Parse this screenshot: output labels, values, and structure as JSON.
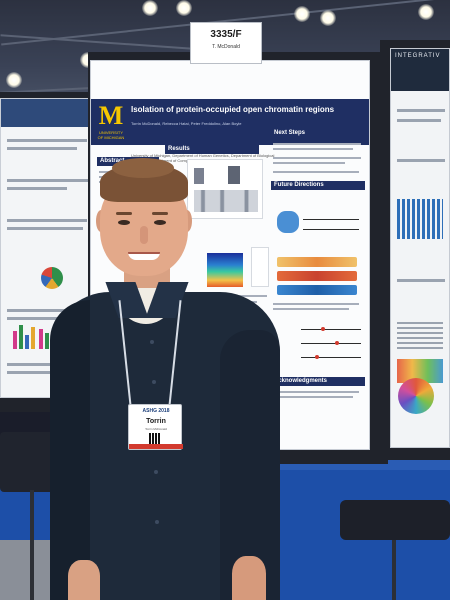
{
  "scene": {
    "description_label": "poster-presentation-photo"
  },
  "booth_sign": {
    "poster_id": "3335/F",
    "presenter": "T. McDonald"
  },
  "main_poster": {
    "university_logo_letter": "M",
    "university_logo_text": "UNIVERSITY OF MICHIGAN",
    "title": "Isolation of protein-occupied open chromatin regions",
    "authors": "Torrin McDonald, Rebecca Hatai, Peter Freddolino, Alan Boyle",
    "affiliation": "University of Michigan, Department of Human Genetics, Department of Biological Chemistry, Department of Computational Medicine and Bioinformatics",
    "sections": {
      "abstract": "Abstract",
      "results": "Results",
      "next_steps": "Next Steps",
      "future_directions": "Future Directions",
      "acknowledgments": "Acknowledgments"
    }
  },
  "right_poster": {
    "title_fragment": "INTEGRATIV"
  },
  "badge": {
    "event": "ASHG 2018",
    "name": "Torrin",
    "institution": "Torrin McDonald"
  },
  "colors": {
    "poster_header": "#1f2f63",
    "michigan_maize": "#f6c700",
    "carpet_blue": "#1d4fa8",
    "shirt_navy": "#1e2a3a"
  }
}
